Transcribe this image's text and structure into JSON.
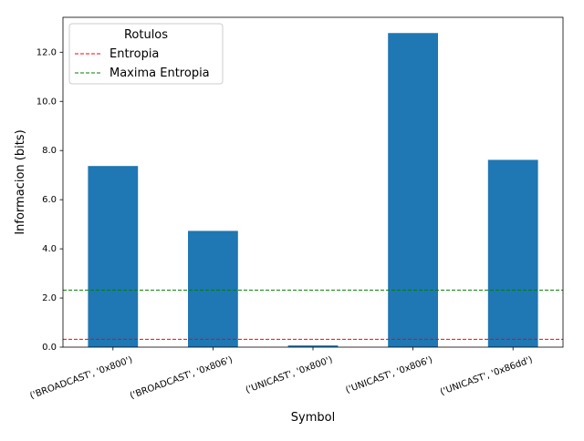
{
  "chart_data": {
    "type": "bar",
    "xlabel": "Symbol",
    "ylabel": "Informacion (bits)",
    "categories": [
      "('BROADCAST', '0x800')",
      "('BROADCAST', '0x806')",
      "('UNICAST', '0x800')",
      "('UNICAST', '0x806')",
      "('UNICAST', '0x86dd')"
    ],
    "values": [
      7.37,
      4.73,
      0.07,
      12.78,
      7.62
    ],
    "bar_color": "#1f77b4",
    "ylim": [
      0,
      13.42
    ],
    "yticks": [
      0,
      2,
      4,
      6,
      8,
      10,
      12
    ],
    "ytick_labels": [
      "0.0",
      "2.0",
      "4.0",
      "6.0",
      "8.0",
      "10.0",
      "12.0"
    ],
    "hlines": [
      {
        "name": "Entropia",
        "value": 0.32,
        "color": "#ff0000",
        "style": "dashed"
      },
      {
        "name": "Maxima Entropia",
        "value": 2.32,
        "color": "#008000",
        "style": "dashed"
      }
    ],
    "legend": {
      "title": "Rotulos",
      "placement": "upper-left"
    },
    "grid": false
  }
}
